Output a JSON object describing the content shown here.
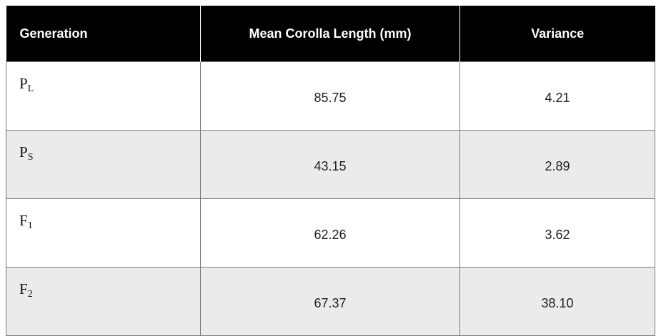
{
  "table": {
    "headers": [
      "Generation",
      "Mean Corolla Length (mm)",
      "Variance"
    ],
    "rows": [
      {
        "generation": "P",
        "generation_sub": "L",
        "mean": "85.75",
        "variance": "4.21"
      },
      {
        "generation": "P",
        "generation_sub": "S",
        "mean": "43.15",
        "variance": "2.89"
      },
      {
        "generation": "F",
        "generation_sub": "1",
        "mean": "62.26",
        "variance": "3.62"
      },
      {
        "generation": "F",
        "generation_sub": "2",
        "mean": "67.37",
        "variance": "38.10"
      }
    ]
  },
  "colors": {
    "header_bg": "#000000",
    "header_text": "#ffffff",
    "alt_row_bg": "#ebebeb",
    "border": "#7a7a7a"
  }
}
